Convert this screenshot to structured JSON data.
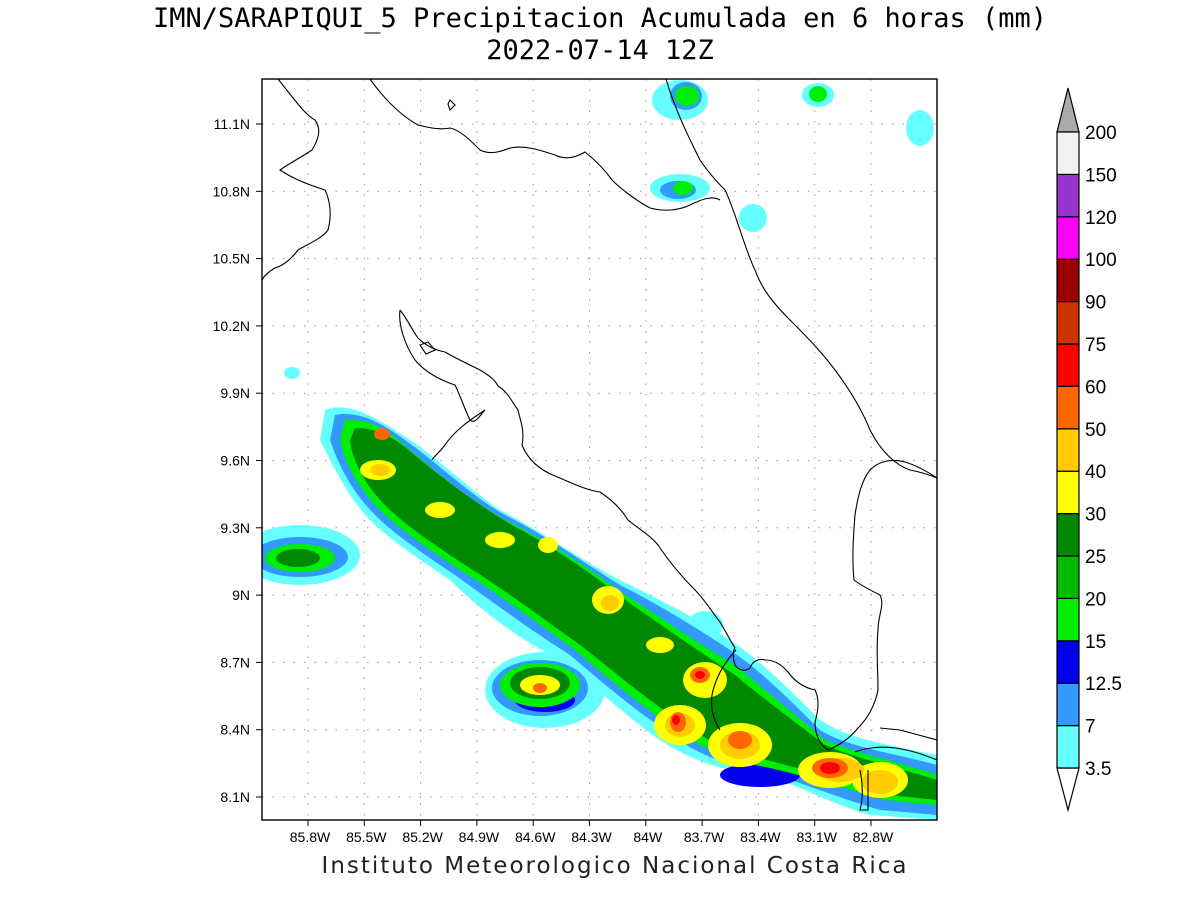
{
  "title_line1": "IMN/SARAPIQUI_5 Precipitacion Acumulada en 6 horas (mm)",
  "title_line2": "2022-07-14 12Z",
  "footer": "Instituto Meteorologico Nacional Costa Rica",
  "lat_labels": [
    "11.1N",
    "10.8N",
    "10.5N",
    "10.2N",
    "9.9N",
    "9.6N",
    "9.3N",
    "9N",
    "8.7N",
    "8.4N",
    "8.1N"
  ],
  "lon_labels": [
    "85.8W",
    "85.5W",
    "85.2W",
    "84.9W",
    "84.6W",
    "84.3W",
    "84W",
    "83.7W",
    "83.4W",
    "83.1W",
    "82.8W"
  ],
  "colorbar": {
    "labels": [
      "3.5",
      "7",
      "12.5",
      "15",
      "20",
      "25",
      "30",
      "40",
      "50",
      "60",
      "75",
      "90",
      "100",
      "120",
      "150",
      "200"
    ],
    "colors": [
      "#ffffff",
      "#66ffff",
      "#3399ff",
      "#0000ee",
      "#00ee00",
      "#00bb00",
      "#008800",
      "#ffff00",
      "#ffcc00",
      "#ff6600",
      "#ff0000",
      "#cc3300",
      "#990000",
      "#ff00ff",
      "#9933cc",
      "#f2f2f2",
      "#aaaaaa"
    ]
  }
}
